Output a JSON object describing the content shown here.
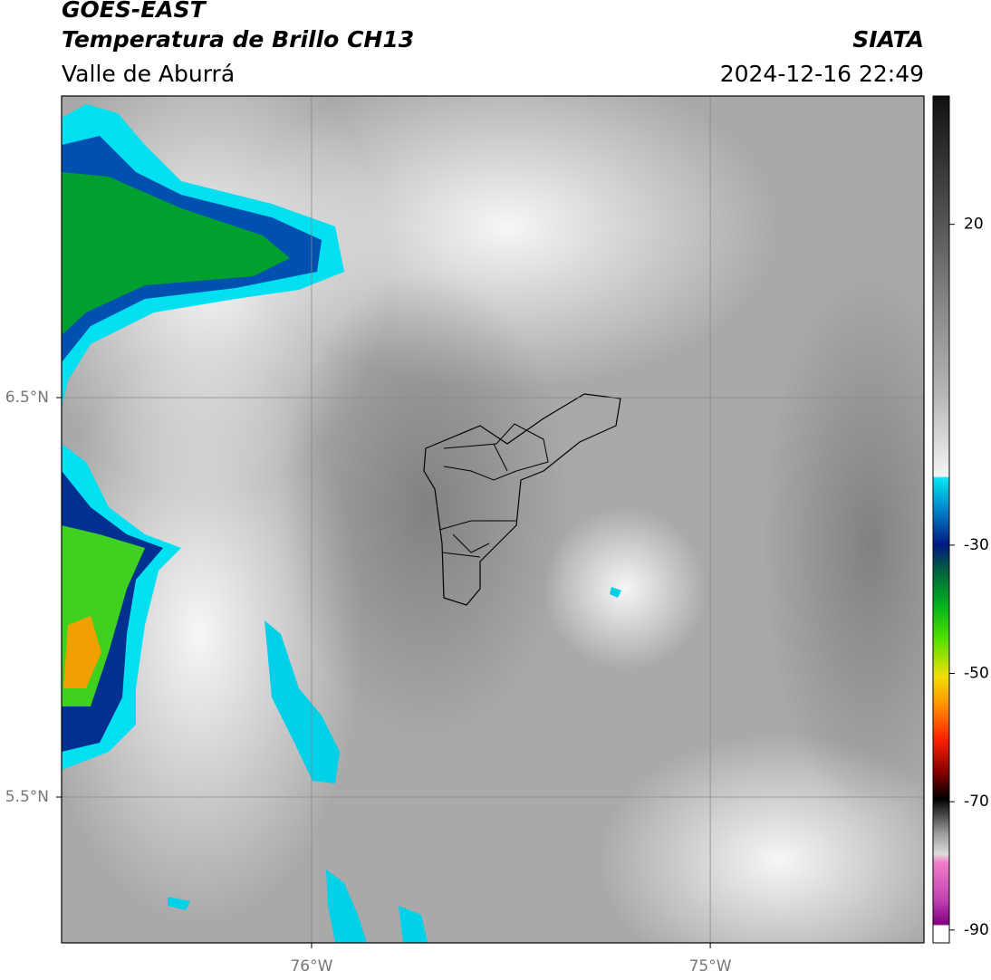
{
  "header": {
    "title": "GOES-EAST",
    "subtitle": "Temperatura de Brillo CH13",
    "region": "Valle de Aburrá",
    "source": "SIATA",
    "timestamp": "2024-12-16 22:49"
  },
  "map": {
    "lon_range": [
      -76.627,
      -74.464
    ],
    "lat_range": [
      5.135,
      7.255
    ],
    "lat_ticks": [
      {
        "value": 6.5,
        "label": "6.5°N"
      },
      {
        "value": 5.5,
        "label": "5.5°N"
      }
    ],
    "lon_ticks": [
      {
        "value": -76,
        "label": "76°W"
      },
      {
        "value": -75,
        "label": "75°W"
      }
    ]
  },
  "colorbar": {
    "range": [
      -92,
      40
    ],
    "ticks": [
      20,
      -30,
      -50,
      -70,
      -90
    ]
  }
}
